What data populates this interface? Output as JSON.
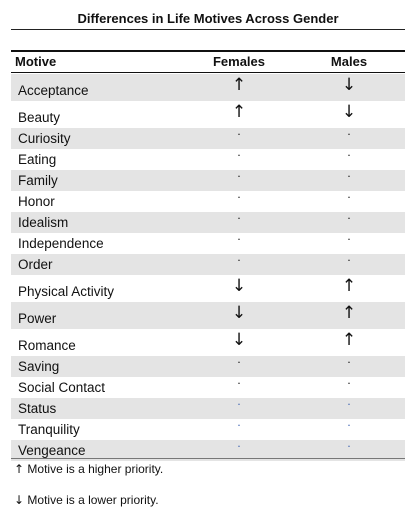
{
  "title": "Differences in Life Motives Across Gender",
  "columns": {
    "motive": "Motive",
    "females": "Females",
    "males": "Males"
  },
  "rows": [
    {
      "motive": "Acceptance",
      "females": "↑",
      "males": "↓"
    },
    {
      "motive": "Beauty",
      "females": "↑",
      "males": "↓"
    },
    {
      "motive": "Curiosity",
      "females": "·",
      "males": "·"
    },
    {
      "motive": "Eating",
      "females": "·",
      "males": "·"
    },
    {
      "motive": "Family",
      "females": "·",
      "males": "·"
    },
    {
      "motive": "Honor",
      "females": "·",
      "males": "·"
    },
    {
      "motive": "Idealism",
      "females": "·",
      "males": "·"
    },
    {
      "motive": "Independence",
      "females": "·",
      "males": "·"
    },
    {
      "motive": "Order",
      "females": "·",
      "males": "·"
    },
    {
      "motive": "Physical Activity",
      "females": "↓",
      "males": "↑"
    },
    {
      "motive": "Power",
      "females": "↓",
      "males": "↑"
    },
    {
      "motive": "Romance",
      "females": "↓",
      "males": "↑"
    },
    {
      "motive": "Saving",
      "females": "·",
      "males": "·"
    },
    {
      "motive": "Social Contact",
      "females": "·",
      "males": "·"
    },
    {
      "motive": "Status",
      "females": "·",
      "males": "·"
    },
    {
      "motive": "Tranquility",
      "females": "·",
      "males": "·"
    },
    {
      "motive": "Vengeance",
      "females": "·",
      "males": "·"
    }
  ],
  "legend": {
    "higher_arrow": "↑",
    "higher_text": "Motive is a higher priority.",
    "lower_arrow": "↓",
    "lower_text": "Motive is a lower priority."
  }
}
